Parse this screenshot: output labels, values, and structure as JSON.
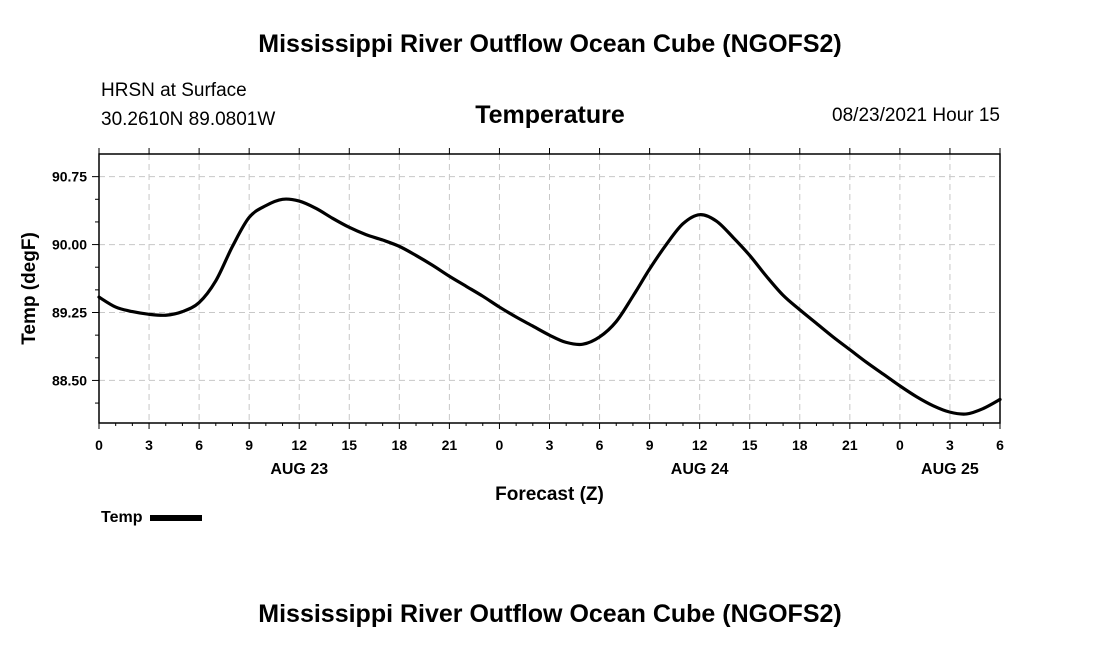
{
  "header": {
    "title": "Mississippi River Outflow Ocean Cube (NGOFS2)",
    "station_name": "HRSN at Surface",
    "station_coords": "30.2610N  89.0801W",
    "variable": "Temperature",
    "datetime": "08/23/2021 Hour 15"
  },
  "footer": {
    "title": "Mississippi River Outflow Ocean Cube (NGOFS2)"
  },
  "legend": {
    "label": "Temp"
  },
  "chart_data": {
    "type": "line",
    "title": "Temperature",
    "xlabel": "Forecast (Z)",
    "ylabel": "Temp (degF)",
    "xlim": [
      0,
      54
    ],
    "ylim": [
      88.03,
      91.0
    ],
    "x_unit": "hours since 2021-08-23 00Z",
    "x_tick_values": [
      0,
      3,
      6,
      9,
      12,
      15,
      18,
      21,
      24,
      27,
      30,
      33,
      36,
      39,
      42,
      45,
      48,
      51,
      54
    ],
    "x_tick_labels": [
      "0",
      "3",
      "6",
      "9",
      "12",
      "15",
      "18",
      "21",
      "0",
      "3",
      "6",
      "9",
      "12",
      "15",
      "18",
      "21",
      "0",
      "3",
      "6"
    ],
    "date_labels": [
      {
        "x": 12,
        "label": "AUG 23"
      },
      {
        "x": 36,
        "label": "AUG 24"
      },
      {
        "x": 51,
        "label": "AUG 25"
      }
    ],
    "y_ticks": [
      88.5,
      89.25,
      90.0,
      90.75
    ],
    "y_tick_labels": [
      "88.50",
      "89.25",
      "90.00",
      "90.75"
    ],
    "grid": true,
    "legend_position": "bottom-left",
    "series": [
      {
        "name": "Temp",
        "color": "#000000",
        "x": [
          0,
          1,
          2,
          3,
          4,
          5,
          6,
          7,
          8,
          9,
          10,
          11,
          12,
          13,
          14,
          15,
          16,
          17,
          18,
          19,
          20,
          21,
          22,
          23,
          24,
          25,
          26,
          27,
          28,
          29,
          30,
          31,
          32,
          33,
          34,
          35,
          36,
          37,
          38,
          39,
          40,
          41,
          42,
          43,
          44,
          45,
          46,
          47,
          48,
          49,
          50,
          51,
          52,
          53,
          54
        ],
        "y": [
          89.42,
          89.31,
          89.26,
          89.23,
          89.22,
          89.26,
          89.36,
          89.6,
          89.98,
          90.3,
          90.43,
          90.5,
          90.48,
          90.4,
          90.29,
          90.19,
          90.11,
          90.05,
          89.98,
          89.88,
          89.77,
          89.65,
          89.54,
          89.43,
          89.31,
          89.2,
          89.1,
          89.0,
          88.92,
          88.9,
          88.98,
          89.15,
          89.43,
          89.73,
          90.0,
          90.23,
          90.33,
          90.26,
          90.08,
          89.88,
          89.65,
          89.44,
          89.28,
          89.13,
          88.98,
          88.84,
          88.7,
          88.57,
          88.44,
          88.32,
          88.22,
          88.15,
          88.13,
          88.19,
          88.29
        ]
      }
    ]
  }
}
